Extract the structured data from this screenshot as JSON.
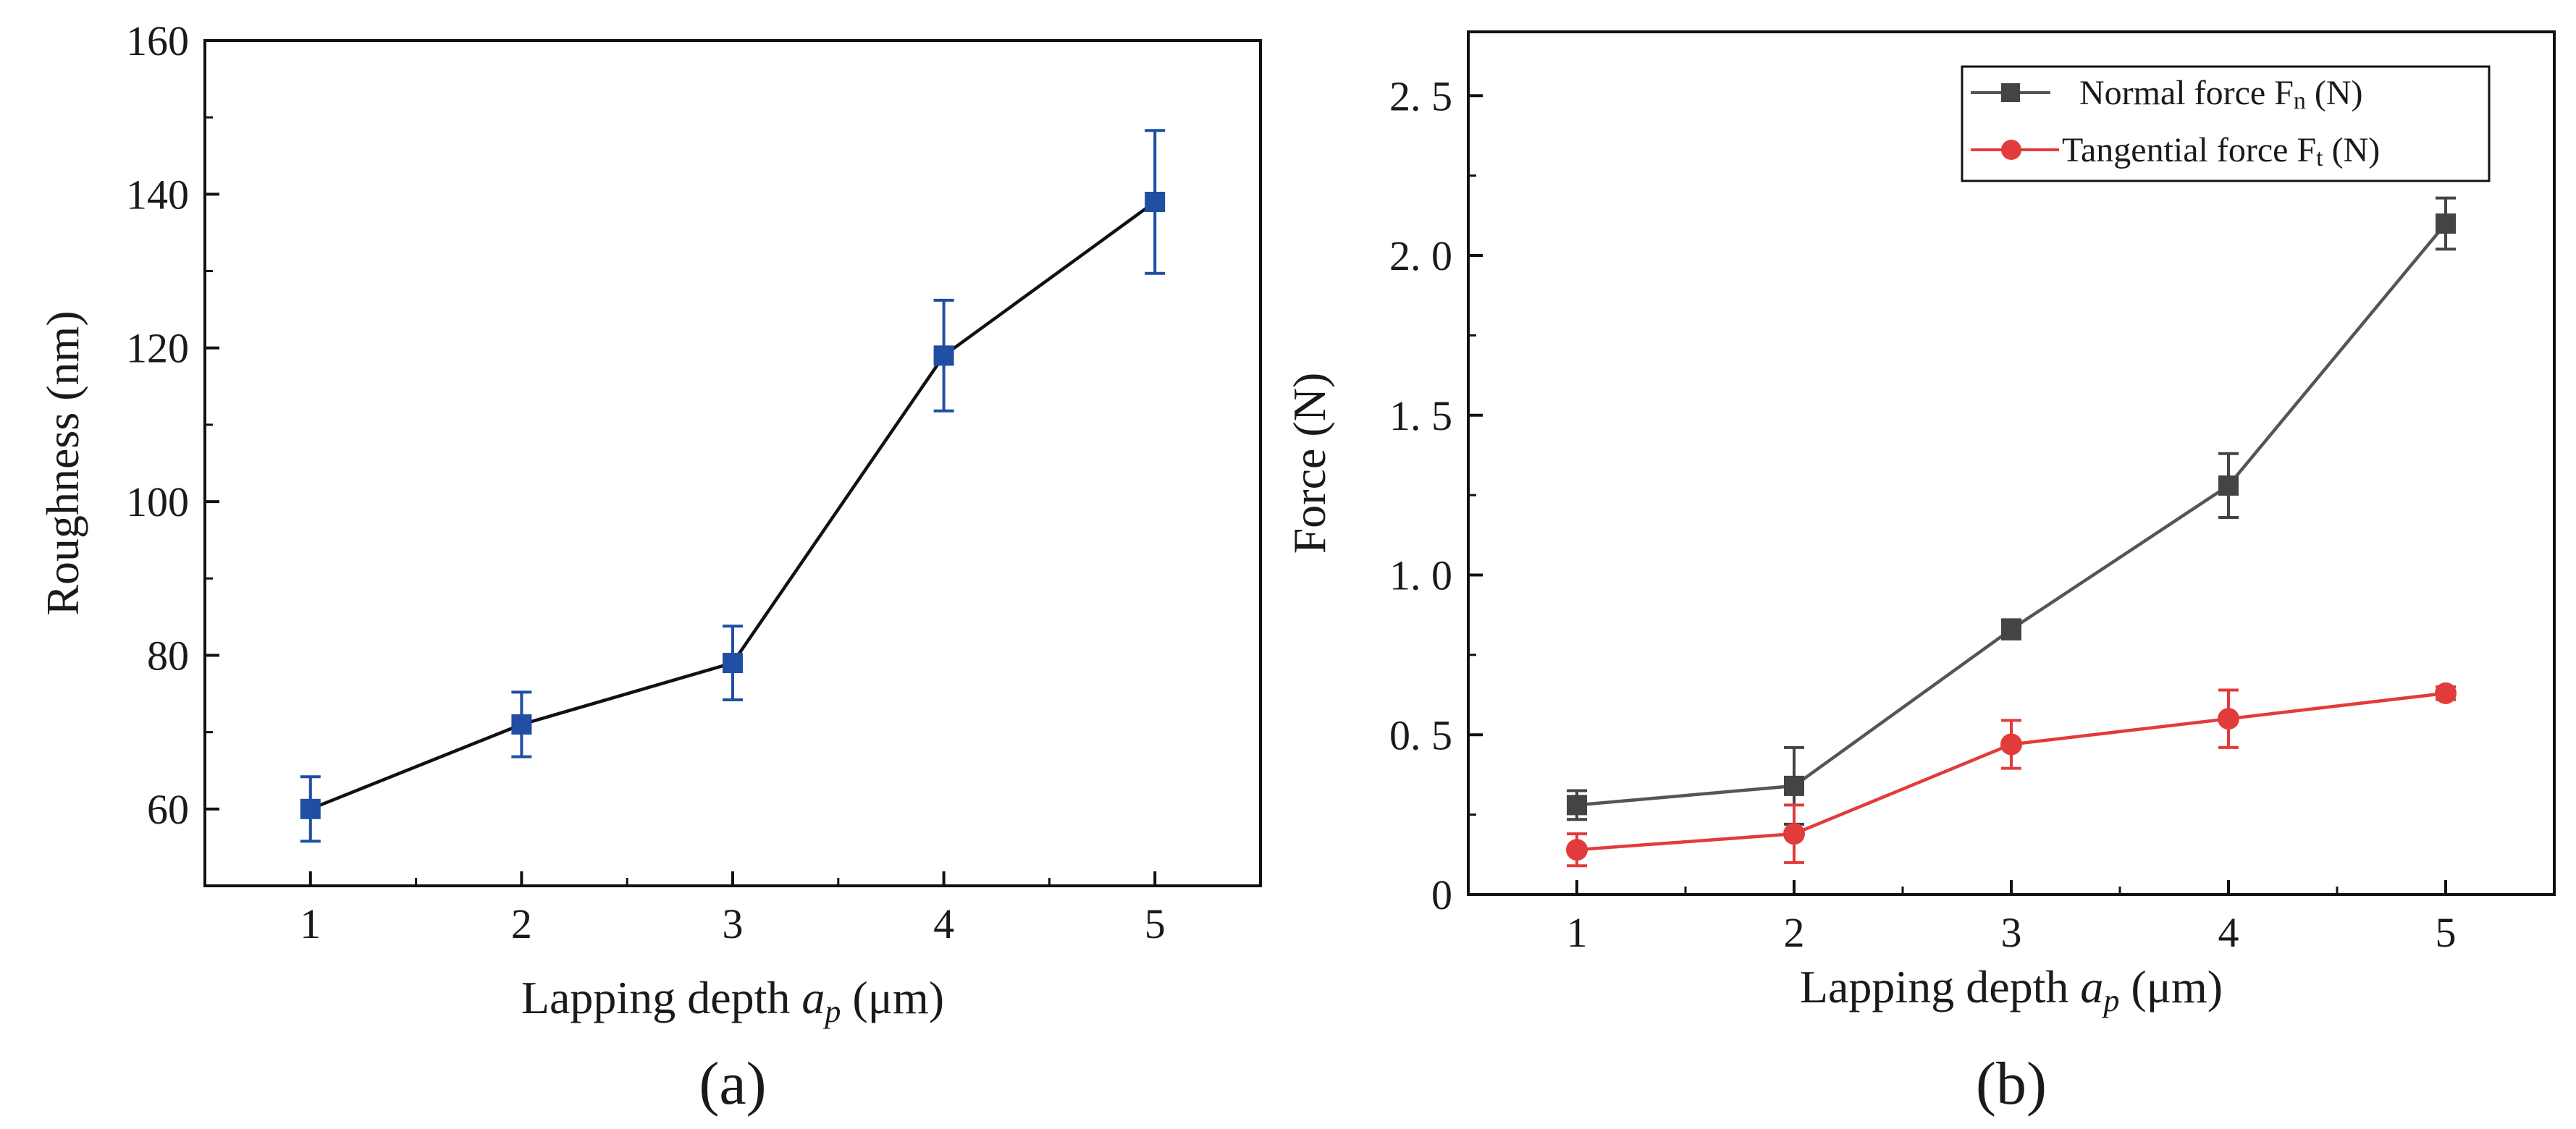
{
  "chart_data": [
    {
      "type": "line",
      "panel_label": "(a)",
      "xlabel_prefix": "Lapping depth ",
      "xlabel_var": "a",
      "xlabel_sub": "p",
      "xlabel_unit": " (μm)",
      "ylabel": "Roughness (nm)",
      "xlim": [
        0.5,
        5.5
      ],
      "ylim": [
        50,
        160
      ],
      "xticks": [
        1,
        2,
        3,
        4,
        5
      ],
      "yticks": [
        60,
        80,
        100,
        120,
        140,
        160
      ],
      "ytick_labels": [
        "60",
        "80",
        "100",
        "120",
        "140",
        "160"
      ],
      "grid": false,
      "series": [
        {
          "name": "Roughness",
          "x": [
            1,
            2,
            3,
            4,
            5
          ],
          "values": [
            60,
            71,
            79,
            119,
            139
          ],
          "err": [
            4.2,
            4.2,
            4.8,
            7.2,
            9.3
          ],
          "marker": "square",
          "line_color": "#111111",
          "marker_color": "#1f4ea3"
        }
      ]
    },
    {
      "type": "line",
      "panel_label": "(b)",
      "xlabel_prefix": "Lapping depth ",
      "xlabel_var": "a",
      "xlabel_sub": "p",
      "xlabel_unit": " (μm)",
      "ylabel": "Force (N)",
      "xlim": [
        0.5,
        5.5
      ],
      "ylim": [
        0,
        2.7
      ],
      "xticks": [
        1,
        2,
        3,
        4,
        5
      ],
      "yticks": [
        0,
        0.5,
        1.0,
        1.5,
        2.0,
        2.5
      ],
      "ytick_labels": [
        "0",
        "0. 5",
        "1. 0",
        "1. 5",
        "2. 0",
        "2. 5"
      ],
      "grid": false,
      "legend_position": "top-right",
      "series": [
        {
          "name": "Normal force Fn (N)",
          "legend_main": "Normal force F",
          "legend_sub": "n",
          "legend_unit": " (N)",
          "x": [
            1,
            2,
            3,
            4,
            5
          ],
          "values": [
            0.28,
            0.34,
            0.83,
            1.28,
            2.1
          ],
          "err": [
            0.045,
            0.12,
            0.03,
            0.1,
            0.08
          ],
          "marker": "square",
          "line_color": "#555555",
          "marker_color": "#444444"
        },
        {
          "name": "Tangential force Ft (N)",
          "legend_main": "Tangential force F",
          "legend_sub": "t",
          "legend_unit": " (N)",
          "x": [
            1,
            2,
            3,
            4,
            5
          ],
          "values": [
            0.14,
            0.19,
            0.47,
            0.55,
            0.63
          ],
          "err": [
            0.05,
            0.09,
            0.075,
            0.09,
            0.02
          ],
          "marker": "circle",
          "line_color": "#e23b3b",
          "marker_color": "#e23b3b"
        }
      ]
    }
  ]
}
